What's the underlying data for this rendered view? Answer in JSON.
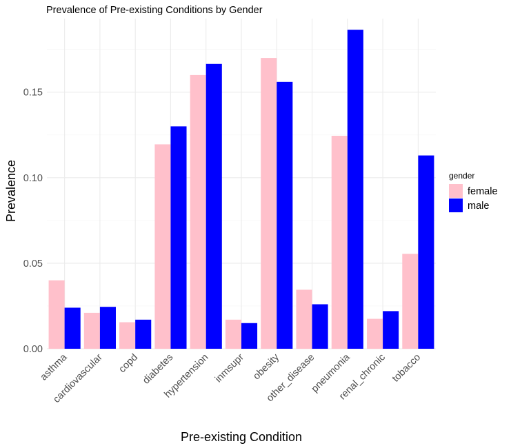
{
  "chart_data": {
    "type": "bar",
    "title": "Prevalence of Pre-existing Conditions by Gender",
    "xlabel": "Pre-existing Condition",
    "ylabel": "Prevalence",
    "categories": [
      "asthma",
      "cardiovascular",
      "copd",
      "diabetes",
      "hypertension",
      "inmsupr",
      "obesity",
      "other_disease",
      "pneumonia",
      "renal_chronic",
      "tobacco"
    ],
    "series": [
      {
        "name": "female",
        "values": [
          0.04,
          0.021,
          0.0155,
          0.1195,
          0.16,
          0.017,
          0.17,
          0.0345,
          0.1245,
          0.0175,
          0.0555
        ]
      },
      {
        "name": "male",
        "values": [
          0.024,
          0.0245,
          0.017,
          0.13,
          0.1665,
          0.015,
          0.156,
          0.026,
          0.1865,
          0.022,
          0.113
        ]
      }
    ],
    "ylim": [
      0,
      0.193
    ],
    "yticks": [
      0.0,
      0.05,
      0.1,
      0.15
    ],
    "ytick_labels": [
      "0.00",
      "0.05",
      "0.10",
      "0.15"
    ],
    "legend": {
      "title": "gender",
      "placement": "right"
    },
    "colors": {
      "female": "#FFC0CB",
      "male": "#0000FF"
    },
    "grid": true
  }
}
